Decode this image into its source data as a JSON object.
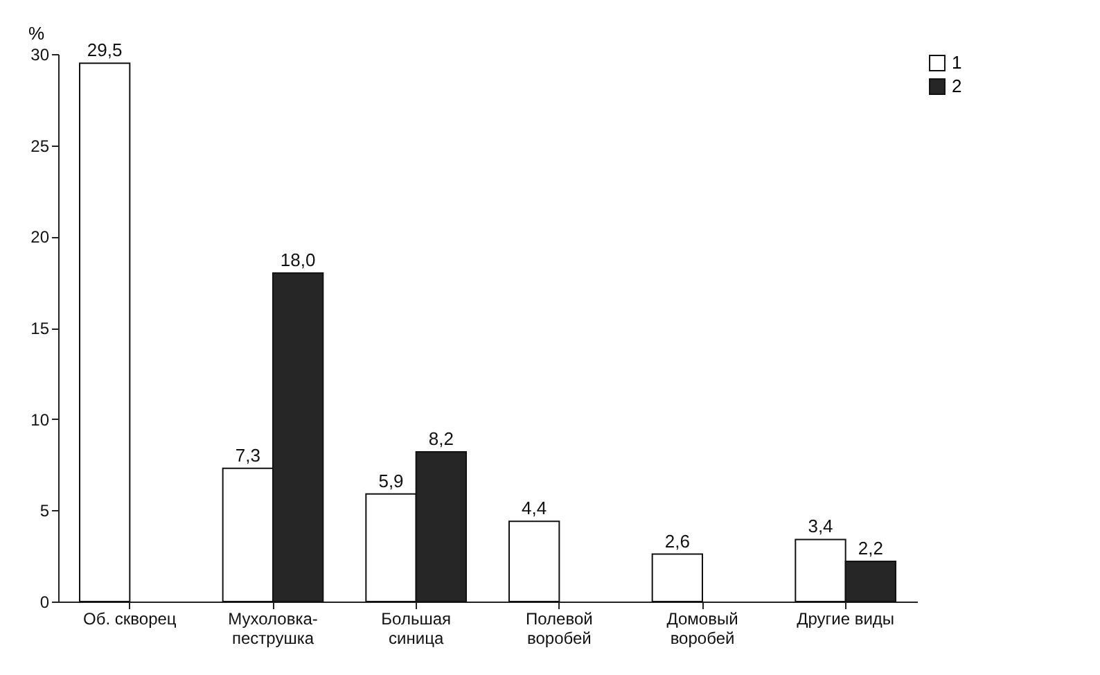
{
  "chart_data": {
    "type": "bar",
    "ylabel": "%",
    "categories": [
      "Об. скворец",
      "Мухоловка-пеструшка",
      "Большая синица",
      "Полевой воробей",
      "Домовый воробей",
      "Другие виды"
    ],
    "series": [
      {
        "name": "1",
        "color": "#ffffff",
        "values": [
          29.5,
          7.3,
          5.9,
          4.4,
          2.6,
          3.4
        ],
        "value_labels": [
          "29,5",
          "7,3",
          "5,9",
          "4,4",
          "2,6",
          "3,4"
        ]
      },
      {
        "name": "2",
        "color": "#262626",
        "values": [
          null,
          18.0,
          8.2,
          null,
          null,
          2.2
        ],
        "value_labels": [
          null,
          "18,0",
          "8,2",
          null,
          null,
          "2,2"
        ]
      }
    ],
    "ylim": [
      0,
      30
    ],
    "yticks": [
      0,
      5,
      10,
      15,
      20,
      25,
      30
    ],
    "grid": false,
    "legend": "right"
  }
}
